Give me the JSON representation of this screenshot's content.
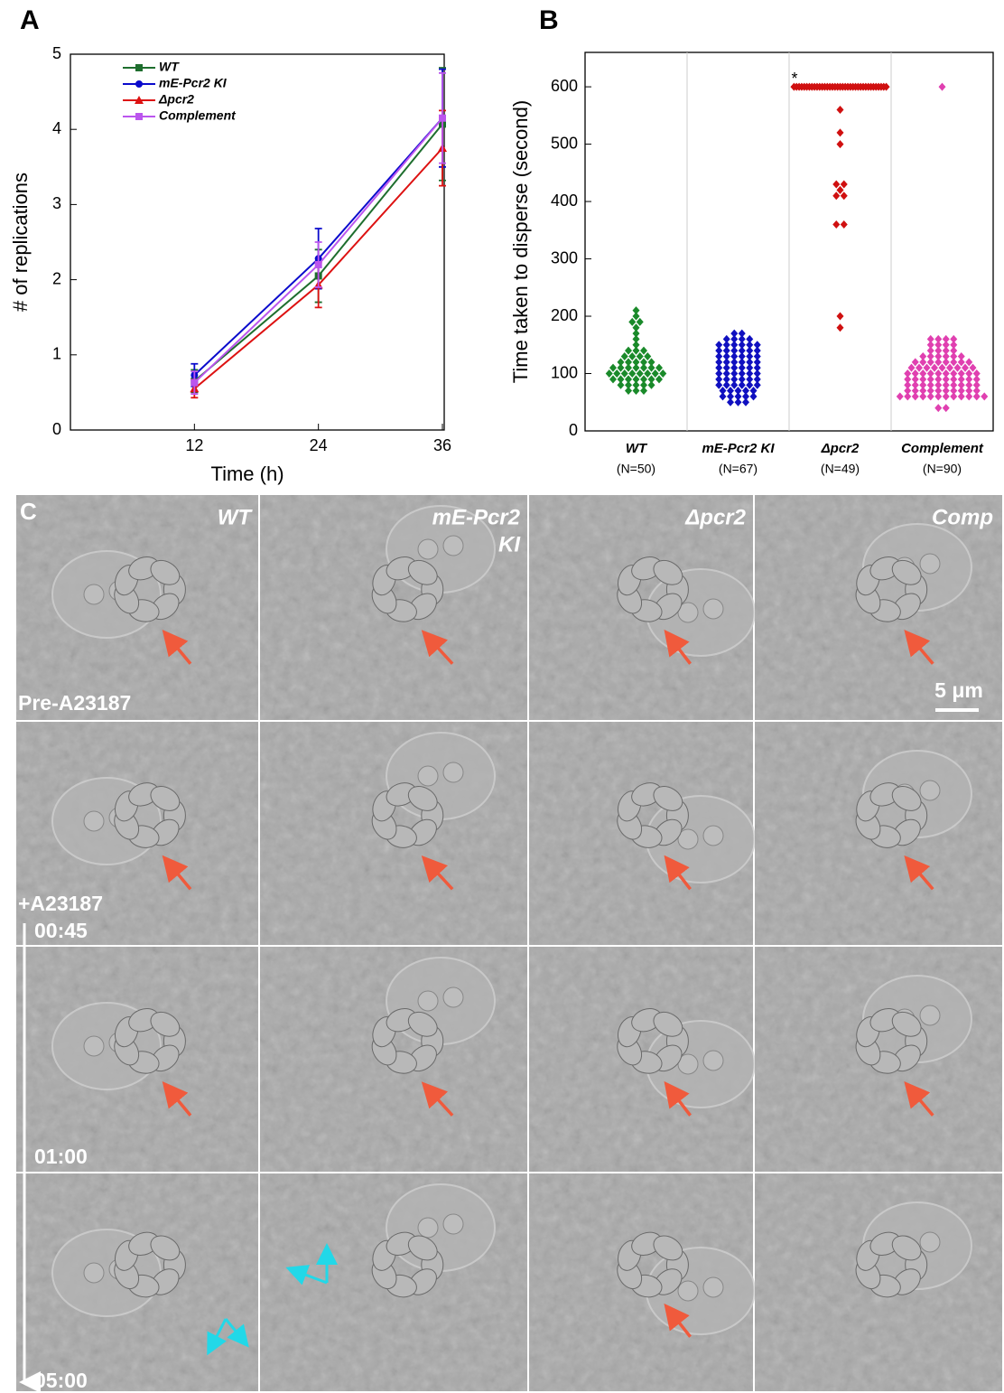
{
  "panel_labels": [
    "A",
    "B"
  ],
  "chart_data": [
    {
      "type": "line",
      "x_label": "Time (h)",
      "y_label": "# of replications",
      "x": [
        12,
        24,
        36
      ],
      "xlim": [
        0,
        36
      ],
      "xticks": [
        12,
        24,
        36
      ],
      "ylim": [
        0,
        5
      ],
      "yticks": [
        0,
        1,
        2,
        3,
        4,
        5
      ],
      "series": [
        {
          "name": "WT",
          "color": "#1e6e2e",
          "marker": "square",
          "values": [
            0.65,
            2.05,
            4.07
          ],
          "errors": [
            0.15,
            0.35,
            0.75
          ]
        },
        {
          "name": "mE-Pcr2 KI",
          "color": "#0a0acc",
          "marker": "circle",
          "values": [
            0.73,
            2.28,
            4.15
          ],
          "errors": [
            0.15,
            0.4,
            0.65
          ]
        },
        {
          "name": "Δpcr2",
          "color": "#dd1111",
          "marker": "triangle",
          "values": [
            0.55,
            1.93,
            3.75
          ],
          "errors": [
            0.12,
            0.3,
            0.5
          ]
        },
        {
          "name": "Complement",
          "color": "#bb55ee",
          "marker": "square",
          "values": [
            0.63,
            2.2,
            4.15
          ],
          "errors": [
            0.15,
            0.3,
            0.6
          ]
        }
      ]
    },
    {
      "type": "strip",
      "y_label": "Time taken to disperse (second)",
      "ylim": [
        0,
        660
      ],
      "yticks": [
        0,
        100,
        200,
        300,
        400,
        500,
        600
      ],
      "annotation": "*",
      "series": [
        {
          "name": "WT",
          "note": "(N=50)",
          "color": "#1a8a2a",
          "values": [
            210,
            200,
            190,
            190,
            180,
            170,
            160,
            150,
            140,
            140,
            140,
            130,
            130,
            130,
            130,
            120,
            120,
            120,
            120,
            120,
            110,
            110,
            110,
            110,
            110,
            110,
            110,
            100,
            100,
            100,
            100,
            100,
            100,
            100,
            100,
            90,
            90,
            90,
            90,
            90,
            90,
            90,
            80,
            80,
            80,
            80,
            80,
            70,
            70,
            70
          ]
        },
        {
          "name": "mE-Pcr2 KI",
          "note": "(N=67)",
          "color": "#1010c0",
          "values": [
            170,
            170,
            160,
            160,
            160,
            160,
            150,
            150,
            150,
            150,
            150,
            150,
            140,
            140,
            140,
            140,
            140,
            140,
            130,
            130,
            130,
            130,
            130,
            130,
            120,
            120,
            120,
            120,
            120,
            120,
            110,
            110,
            110,
            110,
            110,
            110,
            100,
            100,
            100,
            100,
            100,
            100,
            90,
            90,
            90,
            90,
            90,
            90,
            80,
            80,
            80,
            80,
            80,
            80,
            70,
            70,
            70,
            70,
            70,
            60,
            60,
            60,
            60,
            60,
            50,
            50,
            50
          ]
        },
        {
          "name": "Δpcr2",
          "note": "(N=49)",
          "color": "#d01010",
          "values": [
            600,
            600,
            600,
            600,
            600,
            600,
            600,
            600,
            600,
            600,
            600,
            600,
            600,
            600,
            600,
            600,
            600,
            600,
            600,
            600,
            600,
            600,
            600,
            600,
            600,
            600,
            600,
            600,
            600,
            600,
            600,
            600,
            600,
            600,
            600,
            600,
            600,
            560,
            520,
            500,
            430,
            430,
            420,
            410,
            410,
            360,
            360,
            200,
            180
          ]
        },
        {
          "name": "Complement",
          "note": "(N=90)",
          "color": "#e040b0",
          "values": [
            600,
            160,
            160,
            160,
            160,
            150,
            150,
            150,
            150,
            140,
            140,
            140,
            140,
            130,
            130,
            130,
            130,
            130,
            130,
            120,
            120,
            120,
            120,
            120,
            120,
            120,
            120,
            110,
            110,
            110,
            110,
            110,
            110,
            110,
            110,
            110,
            100,
            100,
            100,
            100,
            100,
            100,
            100,
            100,
            100,
            100,
            90,
            90,
            90,
            90,
            90,
            90,
            90,
            90,
            90,
            90,
            80,
            80,
            80,
            80,
            80,
            80,
            80,
            80,
            80,
            80,
            70,
            70,
            70,
            70,
            70,
            70,
            70,
            70,
            70,
            70,
            60,
            60,
            60,
            60,
            60,
            60,
            60,
            60,
            60,
            60,
            60,
            60,
            40,
            40
          ]
        }
      ]
    }
  ],
  "panel_c": {
    "label": "C",
    "columns": [
      [
        "WT"
      ],
      [
        "mE-Pcr2",
        "KI"
      ],
      [
        "Δpcr2"
      ],
      [
        "Comp"
      ]
    ],
    "row_labels": [
      "Pre-A23187",
      "+A23187"
    ],
    "times": [
      "00:45",
      "01:00",
      "05:00"
    ],
    "scale_bar": "5 μm"
  }
}
